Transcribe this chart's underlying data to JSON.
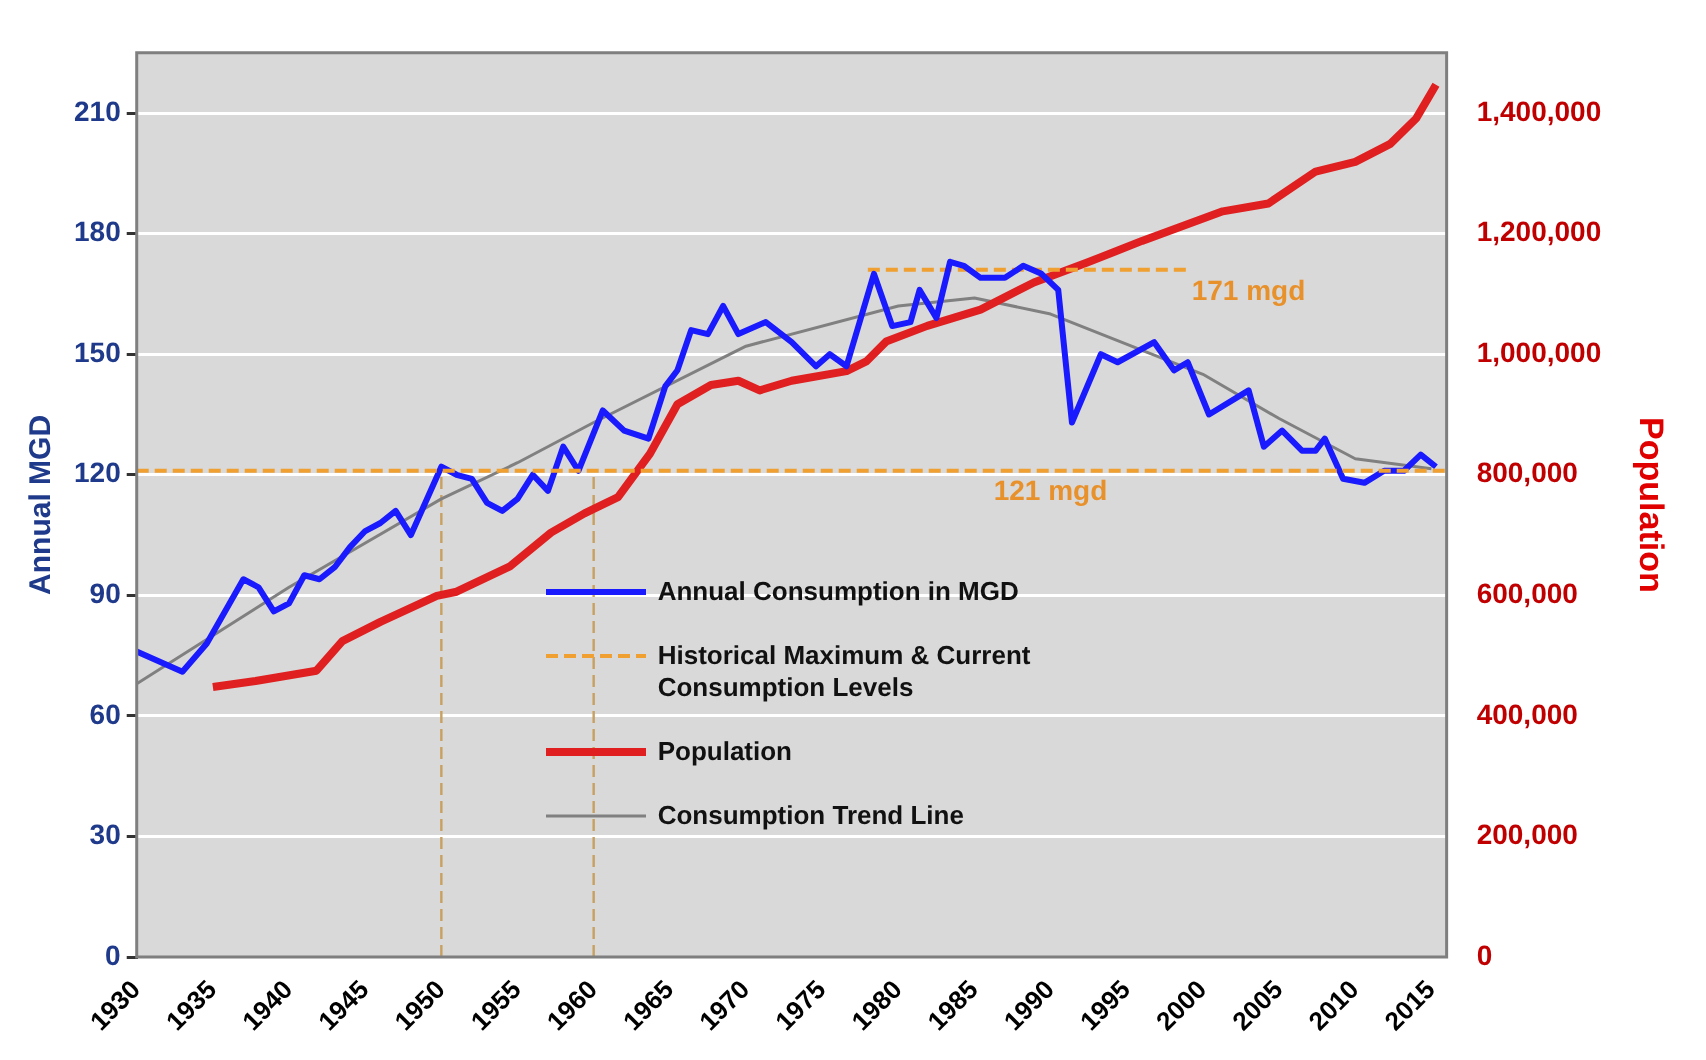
{
  "chart_data": {
    "type": "line",
    "xlabel": null,
    "ylabel": "Annual MGD",
    "y2label": "Population",
    "xlim": [
      1930,
      2016
    ],
    "xticks": [
      1930,
      1935,
      1940,
      1945,
      1950,
      1955,
      1960,
      1965,
      1970,
      1975,
      1980,
      1985,
      1990,
      1995,
      2000,
      2005,
      2010,
      2015
    ],
    "ylim": [
      0,
      225
    ],
    "yticks": [
      0,
      30,
      60,
      90,
      120,
      150,
      180,
      210
    ],
    "y2lim": [
      0,
      1500000
    ],
    "y2ticks": [
      0,
      {
        "value": 200000,
        "label": "200,000"
      },
      {
        "value": 400000,
        "label": "400,000"
      },
      {
        "value": 600000,
        "label": "600,000"
      },
      {
        "value": 800000,
        "label": "800,000"
      },
      {
        "value": 1000000,
        "label": "1,000,000"
      },
      {
        "value": 1200000,
        "label": "1,200,000"
      },
      {
        "value": 1400000,
        "label": "1,400,000"
      }
    ],
    "grid": "y",
    "legend": "bottom right",
    "marker": "none",
    "series": [
      {
        "name": "Annual Consumption in MGD",
        "color": "#1a1aff",
        "line_style": "solid",
        "x": [
          1930,
          1933,
          1934.6,
          1937,
          1938,
          1939,
          1940,
          1941,
          1942,
          1943,
          1944,
          1945,
          1946,
          1947,
          1948,
          1950,
          1951,
          1952,
          1953,
          1954,
          1955,
          1956,
          1957,
          1958,
          1959,
          1960.6,
          1962,
          1963.6,
          1964.7,
          1965.5,
          1966.4,
          1967.5,
          1968.5,
          1969.5,
          1971.3,
          1973,
          1974.6,
          1975.5,
          1976.6,
          1978.4,
          1979.6,
          1980.8,
          1981.4,
          1982.5,
          1983.4,
          1984.3,
          1985.4,
          1987,
          1988.2,
          1989.4,
          1990.5,
          1991.4,
          1993.3,
          1994.4,
          1996.8,
          1998.1,
          1999,
          2000.4,
          2003,
          2004,
          2005.2,
          2006.5,
          2007.4,
          2008,
          2009.2,
          2010.6,
          2011.9,
          2013.2,
          2014.3,
          2015.3
        ],
        "values": [
          76,
          71,
          78,
          94,
          92,
          86,
          88,
          95,
          94,
          97,
          102,
          106,
          108,
          111,
          105,
          122,
          120,
          119,
          113,
          111,
          114,
          120,
          116,
          127,
          121,
          136,
          131,
          129,
          142,
          146,
          156,
          155,
          162,
          155,
          158,
          153,
          147,
          150,
          147,
          170,
          157,
          158,
          166,
          159,
          173,
          172,
          169,
          169,
          172,
          170,
          166,
          133,
          150,
          148,
          153,
          146,
          148,
          135,
          141,
          127,
          131,
          126,
          126,
          129,
          119,
          118,
          121,
          121,
          125,
          122
        ]
      },
      {
        "name": "Historical Maximum & Current Consumption Levels",
        "color": "#f0a030",
        "line_style": "dashed",
        "x": [
          1978,
          1999
        ],
        "values": [
          171,
          171
        ]
      },
      {
        "name": "Population",
        "color": "#e02020",
        "line_style": "solid",
        "axis": "y2",
        "x": [
          1935,
          1937.8,
          1941.8,
          1943.5,
          1946,
          1949.7,
          1951,
          1954.5,
          1957.2,
          1959.4,
          1961.6,
          1963.7,
          1965.5,
          1967.7,
          1969.5,
          1970.9,
          1973,
          1976.6,
          1977.9,
          1979.2,
          1981.9,
          1985.4,
          1988.9,
          1992.4,
          1996,
          2001.3,
          2004.3,
          2007.4,
          2010,
          2012.3,
          2014,
          2015.3
        ],
        "values": [
          448000,
          458000,
          475000,
          524000,
          556000,
          599000,
          606000,
          648000,
          704000,
          736000,
          763000,
          835000,
          917000,
          949000,
          956000,
          940000,
          956000,
          972000,
          988000,
          1021000,
          1047000,
          1074000,
          1119000,
          1152000,
          1188000,
          1237000,
          1250000,
          1303000,
          1319000,
          1349000,
          1391000,
          1447000
        ]
      },
      {
        "name": "Consumption Trend Line",
        "color": "#808080",
        "line_style": "solid",
        "x": [
          1930,
          1940,
          1950,
          1955,
          1960,
          1970,
          1980,
          1985,
          1990,
          2000,
          2005,
          2010,
          2015
        ],
        "values": [
          68,
          92,
          114,
          123,
          133,
          152,
          162,
          164,
          160,
          145,
          134,
          124,
          121.5
        ]
      },
      {
        "color": "#c8a060",
        "line_style": "dashed",
        "x": [
          1950,
          1950
        ],
        "values": [
          0,
          121
        ]
      },
      {
        "color": "#c8a060",
        "line_style": "dashed",
        "x": [
          1960,
          1960
        ],
        "values": [
          0,
          121
        ]
      }
    ],
    "ref_lines": [
      {
        "axis": "y",
        "value": 121,
        "color": "#f0a030",
        "line_style": "dashed"
      }
    ],
    "annotations": [
      {
        "text": "171 mgd",
        "x": 1999,
        "y": 171
      },
      {
        "text": "121 mgd",
        "x": 1986,
        "y": 121
      }
    ]
  }
}
